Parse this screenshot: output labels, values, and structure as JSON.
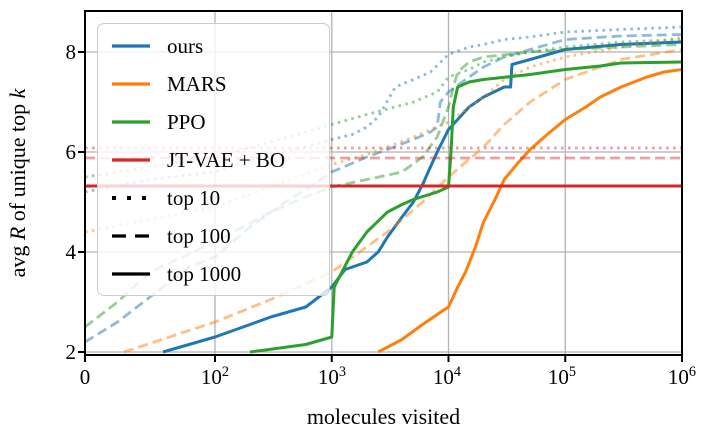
{
  "axes": {
    "x": {
      "label": "molecules visited",
      "ticks": [
        {
          "text": "0",
          "exp": ""
        },
        {
          "text": "10",
          "exp": "2"
        },
        {
          "text": "10",
          "exp": "3"
        },
        {
          "text": "10",
          "exp": "4"
        },
        {
          "text": "10",
          "exp": "5"
        },
        {
          "text": "10",
          "exp": "6"
        }
      ]
    },
    "y": {
      "label_parts": [
        "avg ",
        "R",
        " of unique top ",
        "k"
      ],
      "ticks": [
        "2",
        "4",
        "6",
        "8"
      ]
    }
  },
  "legend": {
    "items": [
      {
        "label": "ours",
        "color": "#1f77b4",
        "dash": "solid"
      },
      {
        "label": "MARS",
        "color": "#ff7f0e",
        "dash": "solid"
      },
      {
        "label": "PPO",
        "color": "#2ca02c",
        "dash": "solid"
      },
      {
        "label": "JT-VAE + BO",
        "color": "#d62728",
        "dash": "solid"
      },
      {
        "label": "top 10",
        "color": "#000000",
        "dash": "dotted"
      },
      {
        "label": "top 100",
        "color": "#000000",
        "dash": "dashed"
      },
      {
        "label": "top 1000",
        "color": "#000000",
        "dash": "solid"
      }
    ]
  },
  "chart_data": {
    "type": "line",
    "title": "",
    "xlabel": "molecules visited",
    "ylabel": "avg R of unique top k",
    "x_scale": "symlog",
    "x_ticks": [
      0,
      100,
      1000,
      10000,
      100000,
      1000000
    ],
    "y_ticks": [
      2,
      4,
      6,
      8
    ],
    "ylim": [
      1.94,
      8.82
    ],
    "grid": true,
    "grid_color": "#b2b2b2",
    "legend_position": "upper left",
    "line_styles_meaning": {
      "dotted": "top 10",
      "dashed": "top 100",
      "solid": "top 1000"
    },
    "series": [
      {
        "id": "ours-top-10",
        "method": "ours",
        "k": 10,
        "color": "#1f77b4",
        "style": "dotted",
        "alpha": 0.5,
        "points": [
          [
            0,
            5.2
          ],
          [
            50,
            5.45
          ],
          [
            100,
            5.6
          ],
          [
            300,
            5.95
          ],
          [
            600,
            6.1
          ],
          [
            1000,
            6.25
          ],
          [
            1500,
            6.35
          ],
          [
            2000,
            6.5
          ],
          [
            2500,
            6.7
          ],
          [
            3500,
            7.3
          ],
          [
            5000,
            7.45
          ],
          [
            7000,
            7.6
          ],
          [
            10000,
            7.95
          ],
          [
            15000,
            8.1
          ],
          [
            20000,
            8.15
          ],
          [
            30000,
            8.25
          ],
          [
            50000,
            8.3
          ],
          [
            100000,
            8.4
          ],
          [
            300000,
            8.45
          ],
          [
            1000000,
            8.5
          ]
        ]
      },
      {
        "id": "ours-top-100",
        "method": "ours",
        "k": 100,
        "color": "#1f77b4",
        "style": "dashed",
        "alpha": 0.5,
        "points": [
          [
            0,
            2.2
          ],
          [
            25,
            2.6
          ],
          [
            50,
            3.1
          ],
          [
            80,
            3.7
          ],
          [
            100,
            3.9
          ],
          [
            200,
            4.5
          ],
          [
            400,
            5.0
          ],
          [
            700,
            5.35
          ],
          [
            1000,
            5.6
          ],
          [
            2000,
            5.9
          ],
          [
            3000,
            6.05
          ],
          [
            5000,
            6.25
          ],
          [
            7000,
            6.4
          ],
          [
            8000,
            6.5
          ],
          [
            8500,
            7.0
          ],
          [
            10000,
            7.2
          ],
          [
            15000,
            7.5
          ],
          [
            20000,
            7.7
          ],
          [
            30000,
            7.9
          ],
          [
            50000,
            8.05
          ],
          [
            100000,
            8.25
          ],
          [
            300000,
            8.32
          ],
          [
            1000000,
            8.35
          ]
        ]
      },
      {
        "id": "ours-top-1000",
        "method": "ours",
        "k": 1000,
        "color": "#1f77b4",
        "style": "solid",
        "alpha": 1,
        "points": [
          [
            60,
            2.0
          ],
          [
            100,
            2.3
          ],
          [
            200,
            2.55
          ],
          [
            300,
            2.7
          ],
          [
            600,
            2.9
          ],
          [
            1000,
            3.3
          ],
          [
            1300,
            3.65
          ],
          [
            2000,
            3.8
          ],
          [
            2500,
            4.0
          ],
          [
            3000,
            4.3
          ],
          [
            4000,
            4.7
          ],
          [
            5000,
            5.0
          ],
          [
            6000,
            5.35
          ],
          [
            7000,
            5.7
          ],
          [
            8000,
            6.0
          ],
          [
            10000,
            6.45
          ],
          [
            15000,
            6.9
          ],
          [
            20000,
            7.1
          ],
          [
            30000,
            7.3
          ],
          [
            34000,
            7.3
          ],
          [
            35000,
            7.75
          ],
          [
            50000,
            7.85
          ],
          [
            100000,
            8.05
          ],
          [
            300000,
            8.15
          ],
          [
            1000000,
            8.2
          ]
        ]
      },
      {
        "id": "mars-top-10",
        "method": "MARS",
        "k": 10,
        "color": "#ff7f0e",
        "style": "dotted",
        "alpha": 0.5,
        "points": [
          [
            0,
            4.4
          ],
          [
            100,
            4.9
          ],
          [
            300,
            5.3
          ],
          [
            1000,
            5.75
          ],
          [
            2000,
            5.95
          ],
          [
            3000,
            6.1
          ],
          [
            5000,
            6.3
          ],
          [
            10000,
            6.6
          ],
          [
            20000,
            7.1
          ],
          [
            30000,
            7.45
          ],
          [
            50000,
            7.7
          ],
          [
            100000,
            7.9
          ],
          [
            300000,
            8.1
          ],
          [
            600000,
            8.2
          ],
          [
            1000000,
            8.3
          ]
        ]
      },
      {
        "id": "mars-top-100",
        "method": "MARS",
        "k": 100,
        "color": "#ff7f0e",
        "style": "dashed",
        "alpha": 0.5,
        "points": [
          [
            30,
            2.0
          ],
          [
            100,
            2.6
          ],
          [
            300,
            3.05
          ],
          [
            1000,
            3.6
          ],
          [
            3000,
            4.4
          ],
          [
            6000,
            5.0
          ],
          [
            10000,
            5.5
          ],
          [
            20000,
            6.1
          ],
          [
            30000,
            6.55
          ],
          [
            50000,
            7.0
          ],
          [
            100000,
            7.45
          ],
          [
            300000,
            7.85
          ],
          [
            1000000,
            8.05
          ]
        ]
      },
      {
        "id": "mars-top-1000",
        "method": "MARS",
        "k": 1000,
        "color": "#ff7f0e",
        "style": "solid",
        "alpha": 1,
        "points": [
          [
            2500,
            2.0
          ],
          [
            4000,
            2.25
          ],
          [
            6000,
            2.55
          ],
          [
            8000,
            2.75
          ],
          [
            10000,
            2.9
          ],
          [
            12000,
            3.3
          ],
          [
            14000,
            3.6
          ],
          [
            17000,
            4.1
          ],
          [
            20000,
            4.6
          ],
          [
            25000,
            5.05
          ],
          [
            30000,
            5.45
          ],
          [
            40000,
            5.8
          ],
          [
            50000,
            6.05
          ],
          [
            70000,
            6.35
          ],
          [
            100000,
            6.65
          ],
          [
            150000,
            6.9
          ],
          [
            200000,
            7.1
          ],
          [
            300000,
            7.3
          ],
          [
            500000,
            7.5
          ],
          [
            700000,
            7.6
          ],
          [
            1000000,
            7.65
          ]
        ]
      },
      {
        "id": "ppo-top-10",
        "method": "PPO",
        "k": 10,
        "color": "#2ca02c",
        "style": "dotted",
        "alpha": 0.5,
        "points": [
          [
            0,
            5.5
          ],
          [
            100,
            5.9
          ],
          [
            300,
            6.2
          ],
          [
            1000,
            6.55
          ],
          [
            2000,
            6.75
          ],
          [
            5000,
            7.0
          ],
          [
            8000,
            7.2
          ],
          [
            10000,
            7.5
          ],
          [
            15000,
            7.65
          ],
          [
            20000,
            7.8
          ],
          [
            30000,
            7.9
          ],
          [
            50000,
            8.0
          ],
          [
            100000,
            8.1
          ],
          [
            300000,
            8.2
          ],
          [
            1000000,
            8.25
          ]
        ]
      },
      {
        "id": "ppo-top-100",
        "method": "PPO",
        "k": 100,
        "color": "#2ca02c",
        "style": "dashed",
        "alpha": 0.5,
        "points": [
          [
            0,
            2.5
          ],
          [
            25,
            3.0
          ],
          [
            50,
            3.6
          ],
          [
            100,
            4.2
          ],
          [
            300,
            4.8
          ],
          [
            600,
            5.1
          ],
          [
            1000,
            5.3
          ],
          [
            2000,
            5.45
          ],
          [
            4000,
            5.6
          ],
          [
            6000,
            5.9
          ],
          [
            8000,
            6.3
          ],
          [
            10000,
            6.9
          ],
          [
            11000,
            7.3
          ],
          [
            12000,
            7.6
          ],
          [
            15000,
            7.8
          ],
          [
            20000,
            7.9
          ],
          [
            50000,
            8.0
          ],
          [
            100000,
            8.05
          ],
          [
            300000,
            8.1
          ],
          [
            1000000,
            8.15
          ]
        ]
      },
      {
        "id": "ppo-top-1000",
        "method": "PPO",
        "k": 1000,
        "color": "#2ca02c",
        "style": "solid",
        "alpha": 1,
        "points": [
          [
            200,
            2.0
          ],
          [
            600,
            2.15
          ],
          [
            1000,
            2.3
          ],
          [
            1050,
            3.3
          ],
          [
            1500,
            4.0
          ],
          [
            2000,
            4.4
          ],
          [
            3000,
            4.8
          ],
          [
            4000,
            4.95
          ],
          [
            5000,
            5.05
          ],
          [
            8000,
            5.2
          ],
          [
            10000,
            5.3
          ],
          [
            10500,
            6.0
          ],
          [
            11000,
            6.9
          ],
          [
            12000,
            7.3
          ],
          [
            15000,
            7.4
          ],
          [
            20000,
            7.45
          ],
          [
            50000,
            7.55
          ],
          [
            100000,
            7.65
          ],
          [
            200000,
            7.72
          ],
          [
            300000,
            7.78
          ],
          [
            1000000,
            7.8
          ]
        ]
      },
      {
        "id": "jtvae-bo-top-10",
        "method": "JT-VAE + BO",
        "k": 10,
        "color": "#d62728",
        "style": "dotted",
        "alpha": 0.45,
        "points": [
          [
            0,
            6.08
          ],
          [
            1000000,
            6.08
          ]
        ]
      },
      {
        "id": "jtvae-bo-top-100",
        "method": "JT-VAE + BO",
        "k": 100,
        "color": "#d62728",
        "style": "dashed",
        "alpha": 0.45,
        "points": [
          [
            0,
            5.88
          ],
          [
            1000000,
            5.88
          ]
        ]
      },
      {
        "id": "jtvae-bo-top-1000",
        "method": "JT-VAE + BO",
        "k": 1000,
        "color": "#d62728",
        "style": "solid",
        "alpha": 1,
        "points": [
          [
            0,
            5.32
          ],
          [
            1000000,
            5.32
          ]
        ]
      }
    ]
  }
}
